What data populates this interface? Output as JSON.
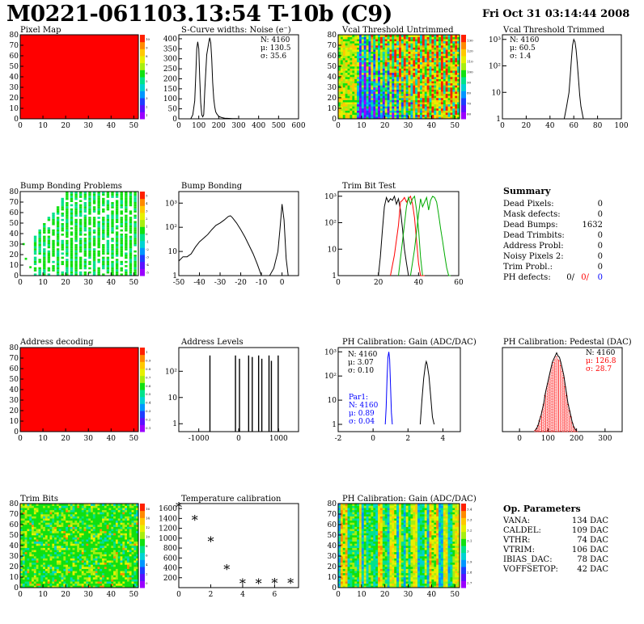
{
  "header": {
    "title": "M0221-061103.13:54 T-10b (C9)",
    "date": "Fri Oct 31 03:14:44 2008"
  },
  "colors": {
    "palette": [
      "#9a00ff",
      "#5a10ff",
      "#1e3cff",
      "#0096ff",
      "#00d2d2",
      "#00e28a",
      "#10e010",
      "#a6ee10",
      "#e6f000",
      "#ffc800",
      "#ff8a00",
      "#ff2000"
    ],
    "black": "#000000",
    "red": "#ff0000",
    "green": "#00bb00",
    "blue": "#0000ff"
  },
  "chart_data": [
    {
      "id": "pixel_map",
      "type": "heatmap",
      "title": "Pixel Map",
      "xlim": [
        0,
        52
      ],
      "ylim": [
        0,
        80
      ],
      "xticks": [
        "0",
        "10",
        "20",
        "30",
        "40",
        "50"
      ],
      "yticks": [
        "0",
        "10",
        "20",
        "30",
        "40",
        "50",
        "60",
        "70",
        "80"
      ],
      "zticks": [
        "1",
        "2",
        "3",
        "4",
        "5",
        "6",
        "7",
        "8",
        "9",
        "10"
      ],
      "fill": "uniform_max"
    },
    {
      "id": "scurve_noise",
      "type": "line",
      "title": "S-Curve widths: Noise (e⁻)",
      "xlim": [
        0,
        600
      ],
      "ylim": [
        0,
        420
      ],
      "xticks": [
        "0",
        "100",
        "200",
        "300",
        "400",
        "500",
        "600"
      ],
      "yticks": [
        "0",
        "50",
        "100",
        "150",
        "200",
        "250",
        "300",
        "350",
        "400"
      ],
      "stats": [
        "N: 4160",
        "μ: 130.5",
        "σ: 35.6"
      ],
      "series": [
        {
          "x": [
            60,
            70,
            80,
            85,
            90,
            95,
            100,
            105,
            110,
            115,
            120,
            125,
            130,
            140,
            150,
            155,
            160,
            165,
            170,
            175,
            180,
            185,
            190,
            200,
            210,
            220,
            230,
            250,
            270,
            290,
            300
          ],
          "y": [
            0,
            20,
            90,
            220,
            350,
            385,
            350,
            200,
            80,
            20,
            10,
            20,
            140,
            320,
            380,
            405,
            380,
            300,
            180,
            100,
            60,
            35,
            25,
            12,
            8,
            5,
            3,
            2,
            1,
            1,
            0
          ]
        }
      ]
    },
    {
      "id": "vcal_untrimmed",
      "type": "heatmap",
      "title": "Vcal Threshold Untrimmed",
      "xlim": [
        0,
        52
      ],
      "ylim": [
        0,
        80
      ],
      "xticks": [
        "0",
        "10",
        "20",
        "30",
        "40",
        "50"
      ],
      "yticks": [
        "0",
        "10",
        "20",
        "30",
        "40",
        "50",
        "60",
        "70",
        "80"
      ],
      "zticks": [
        "60",
        "70",
        "80",
        "90",
        "100",
        "110",
        "120",
        "130"
      ],
      "fill": "gradient_noise"
    },
    {
      "id": "vcal_trimmed",
      "type": "line",
      "title": "Vcal Threshold Trimmed",
      "xlim": [
        0,
        100
      ],
      "ylog": true,
      "ylim": [
        1,
        1500
      ],
      "xticks": [
        "0",
        "20",
        "40",
        "60",
        "80",
        "100"
      ],
      "yticks": [
        "1",
        "10",
        "10²",
        "10³"
      ],
      "stats": [
        "N: 4160",
        "μ: 60.5",
        "σ:  1.4"
      ],
      "series": [
        {
          "x": [
            52,
            54,
            56,
            57,
            58,
            59,
            60,
            61,
            62,
            63,
            64,
            65,
            66,
            68
          ],
          "y": [
            1,
            3,
            10,
            40,
            180,
            600,
            1000,
            800,
            400,
            120,
            30,
            8,
            3,
            1
          ]
        }
      ]
    },
    {
      "id": "bump_problems",
      "type": "heatmap",
      "title": "Bump Bonding Problems",
      "xlim": [
        0,
        52
      ],
      "ylim": [
        0,
        80
      ],
      "xticks": [
        "0",
        "10",
        "20",
        "30",
        "40",
        "50"
      ],
      "yticks": [
        "0",
        "10",
        "20",
        "30",
        "40",
        "50",
        "60",
        "70",
        "80"
      ],
      "zticks": [
        "-5",
        "-4",
        "-3",
        "-2",
        "-1",
        "0",
        "1",
        "2",
        "3",
        "4",
        "5"
      ],
      "fill": "sparse_columns"
    },
    {
      "id": "bump_bonding",
      "type": "line",
      "title": "Bump Bonding",
      "xlim": [
        -50,
        8
      ],
      "ylog": true,
      "ylim": [
        1,
        3000
      ],
      "xticks": [
        "-50",
        "-40",
        "-30",
        "-20",
        "-10",
        "0"
      ],
      "yticks": [
        "1",
        "10",
        "10²",
        "10³"
      ],
      "series": [
        {
          "x": [
            -50,
            -48,
            -46,
            -44,
            -42,
            -40,
            -38,
            -36,
            -34,
            -32,
            -30,
            -28,
            -26,
            -25,
            -24,
            -22,
            -20,
            -18,
            -16,
            -14,
            -12,
            -10,
            -8,
            -6,
            -4,
            -2,
            -1,
            0,
            1,
            2,
            3
          ],
          "y": [
            4,
            6,
            6,
            8,
            15,
            25,
            35,
            50,
            80,
            120,
            150,
            200,
            280,
            300,
            250,
            150,
            80,
            40,
            18,
            8,
            3,
            1,
            0.5,
            1,
            2,
            10,
            80,
            900,
            200,
            5,
            1
          ]
        }
      ]
    },
    {
      "id": "trim_bits",
      "type": "line",
      "title": "Trim Bit Test",
      "xlim": [
        0,
        60
      ],
      "ylog": true,
      "ylim": [
        1,
        1500
      ],
      "xticks": [
        "0",
        "20",
        "40",
        "60"
      ],
      "yticks": [
        "1",
        "10",
        "10²",
        "10³"
      ],
      "series": [
        {
          "name": "",
          "color": "#000000",
          "x": [
            20,
            21,
            22,
            23,
            24,
            25,
            26,
            27,
            28,
            29,
            30,
            31,
            32,
            33,
            34,
            35,
            36
          ],
          "y": [
            1,
            5,
            50,
            400,
            900,
            600,
            800,
            700,
            1000,
            500,
            800,
            300,
            60,
            10,
            3,
            1,
            1
          ]
        },
        {
          "name": "",
          "color": "#ff0000",
          "x": [
            26,
            28,
            30,
            31,
            32,
            33,
            34,
            35,
            36,
            37,
            38,
            39,
            40,
            41,
            42,
            43
          ],
          "y": [
            1,
            6,
            80,
            600,
            700,
            900,
            600,
            800,
            1000,
            500,
            150,
            20,
            3,
            1,
            1,
            1
          ]
        },
        {
          "name": "",
          "color": "#00aa00",
          "x": [
            36,
            38,
            40,
            41,
            42,
            43,
            44,
            45,
            46,
            47,
            48,
            49,
            50,
            51,
            52,
            53,
            54,
            55,
            56
          ],
          "y": [
            1,
            10,
            200,
            800,
            400,
            600,
            900,
            300,
            700,
            1000,
            900,
            600,
            200,
            60,
            20,
            6,
            2,
            1,
            1
          ]
        },
        {
          "name": "",
          "color": "#00aa00",
          "x": [
            30,
            32,
            34,
            35,
            36,
            37,
            38,
            39,
            40,
            41,
            42
          ],
          "y": [
            1,
            20,
            400,
            900,
            500,
            800,
            1000,
            300,
            60,
            5,
            1
          ]
        }
      ]
    },
    {
      "id": "summary",
      "type": "table",
      "title": "Summary",
      "rows": [
        {
          "label": "Dead Pixels:",
          "value": "0"
        },
        {
          "label": "Mask defects:",
          "value": "0"
        },
        {
          "label": "Dead Bumps:",
          "value": "1632"
        },
        {
          "label": "Dead Trimbits:",
          "value": "0"
        },
        {
          "label": "Address Probl:",
          "value": "0"
        },
        {
          "label": "Noisy Pixels 2:",
          "value": "0"
        },
        {
          "label": "Trim Probl.:",
          "value": "0"
        }
      ],
      "ph_defects": {
        "label": "PH defects:",
        "values": [
          "0/",
          "0/",
          "0"
        ]
      }
    },
    {
      "id": "address_decoding",
      "type": "heatmap",
      "title": "Address decoding",
      "xlim": [
        0,
        52
      ],
      "ylim": [
        0,
        80
      ],
      "xticks": [
        "0",
        "10",
        "20",
        "30",
        "40",
        "50"
      ],
      "yticks": [
        "0",
        "10",
        "20",
        "30",
        "40",
        "50",
        "60",
        "70",
        "80"
      ],
      "zticks": [
        "0.1",
        "0.2",
        "0.3",
        "0.4",
        "0.5",
        "0.6",
        "0.7",
        "0.8",
        "0.9",
        "1"
      ],
      "fill": "uniform_max"
    },
    {
      "id": "address_levels",
      "type": "bar",
      "title": "Address Levels",
      "xlim": [
        -1500,
        1500
      ],
      "ylog": true,
      "ylim": [
        0.5,
        800
      ],
      "xticks": [
        "-1000",
        "0",
        "1000"
      ],
      "yticks": [
        "1",
        "10",
        "10²"
      ],
      "x": [
        -720,
        -80,
        20,
        250,
        340,
        500,
        580,
        760,
        820,
        990
      ],
      "values": [
        400,
        400,
        300,
        400,
        350,
        400,
        300,
        400,
        250,
        400
      ]
    },
    {
      "id": "ph_gain",
      "type": "line",
      "title": "PH Calibration: Gain (ADC/DAC)",
      "xlim": [
        -2,
        5
      ],
      "ylog": true,
      "ylim": [
        0.5,
        1500
      ],
      "xticks": [
        "-2",
        "0",
        "2",
        "4"
      ],
      "yticks": [
        "1",
        "10",
        "10²",
        "10³"
      ],
      "stats": [
        "N: 4160",
        "μ: 3.07",
        "σ: 0.10"
      ],
      "stats2": [
        "Par1:",
        "N: 4160",
        "μ: 0.89",
        "σ: 0.04"
      ],
      "series": [
        {
          "name": "",
          "color": "#0000ff",
          "x": [
            0.7,
            0.75,
            0.8,
            0.85,
            0.9,
            0.95,
            1.0,
            1.05,
            1.1
          ],
          "y": [
            1,
            5,
            80,
            600,
            1000,
            500,
            40,
            3,
            1
          ]
        },
        {
          "name": "",
          "color": "#000000",
          "x": [
            2.7,
            2.8,
            2.9,
            3.0,
            3.05,
            3.1,
            3.2,
            3.3,
            3.4,
            3.5
          ],
          "y": [
            1,
            10,
            80,
            300,
            400,
            300,
            100,
            15,
            2,
            1
          ]
        }
      ]
    },
    {
      "id": "ph_pedestal",
      "type": "bar",
      "title": "PH Calibration: Pedestal (DAC)",
      "xlim": [
        -60,
        360
      ],
      "ylim": [
        0,
        140
      ],
      "xticks": [
        "0",
        "100",
        "200",
        "300"
      ],
      "yticks": [],
      "stats": [
        "N: 4160",
        "μ: 126.8",
        "σ: 28.7"
      ],
      "x": [
        55,
        60,
        65,
        70,
        75,
        80,
        85,
        90,
        95,
        100,
        105,
        110,
        115,
        120,
        125,
        130,
        135,
        140,
        145,
        150,
        155,
        160,
        165,
        170,
        175,
        180,
        185,
        190,
        195,
        200
      ],
      "values": [
        2,
        5,
        10,
        18,
        25,
        35,
        45,
        60,
        70,
        80,
        90,
        100,
        110,
        115,
        120,
        125,
        120,
        118,
        110,
        100,
        90,
        75,
        60,
        45,
        35,
        25,
        15,
        8,
        4,
        1
      ]
    },
    {
      "id": "trim_bits_map",
      "type": "heatmap",
      "title": "Trim Bits",
      "xlim": [
        0,
        52
      ],
      "ylim": [
        0,
        80
      ],
      "xticks": [
        "0",
        "10",
        "20",
        "30",
        "40",
        "50"
      ],
      "yticks": [
        "0",
        "10",
        "20",
        "30",
        "40",
        "50",
        "60",
        "70",
        "80"
      ],
      "zticks": [
        "0",
        "2",
        "4",
        "6",
        "8",
        "10",
        "12",
        "14",
        "16"
      ],
      "fill": "random_green"
    },
    {
      "id": "temperature",
      "type": "scatter",
      "title": "Temperature calibration",
      "xlim": [
        0,
        7.5
      ],
      "ylim": [
        0,
        1700
      ],
      "xticks": [
        "0",
        "2",
        "4",
        "6"
      ],
      "yticks": [
        "200",
        "400",
        "600",
        "800",
        "1000",
        "1200",
        "1400",
        "1600"
      ],
      "x": [
        0,
        1,
        2,
        3,
        4,
        5,
        6,
        7
      ],
      "y": [
        1620,
        1360,
        920,
        360,
        75,
        75,
        80,
        80
      ]
    },
    {
      "id": "ph_gain_map",
      "type": "heatmap",
      "title": "PH Calibration: Gain (ADC/DAC)",
      "xlim": [
        0,
        52
      ],
      "ylim": [
        0,
        80
      ],
      "xticks": [
        "0",
        "10",
        "20",
        "30",
        "40",
        "50"
      ],
      "yticks": [
        "0",
        "10",
        "20",
        "30",
        "40",
        "50",
        "60",
        "70",
        "80"
      ],
      "zticks": [
        "2.7",
        "2.8",
        "2.9",
        "3",
        "3.1",
        "3.2",
        "3.3",
        "3.4"
      ],
      "fill": "column_stripes"
    },
    {
      "id": "op_params",
      "type": "table",
      "title": "Op. Parameters",
      "rows": [
        {
          "label": "VANA:",
          "value": "134 DAC"
        },
        {
          "label": "CALDEL:",
          "value": "109 DAC"
        },
        {
          "label": "VTHR:",
          "value": "74 DAC"
        },
        {
          "label": "VTRIM:",
          "value": "106 DAC"
        },
        {
          "label": "IBIAS_DAC:",
          "value": "78 DAC"
        },
        {
          "label": "VOFFSETOP:",
          "value": "42 DAC"
        }
      ]
    }
  ]
}
